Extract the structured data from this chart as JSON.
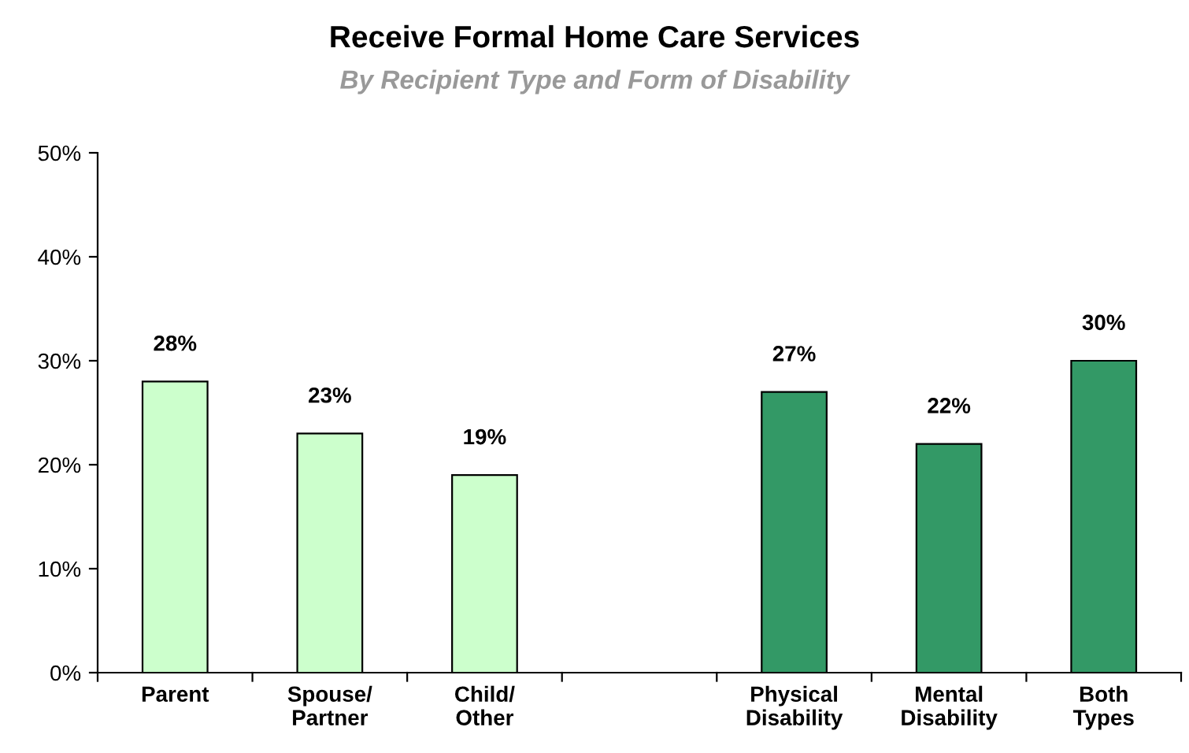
{
  "chart_data": {
    "type": "bar",
    "title": "Receive Formal Home Care Services",
    "subtitle": "By Recipient Type and Form of Disability",
    "categories": [
      "Parent",
      "Spouse/\nPartner",
      "Child/\nOther",
      null,
      "Physical\nDisability",
      "Mental\nDisability",
      "Both\nTypes"
    ],
    "values": [
      28,
      23,
      19,
      null,
      27,
      22,
      30
    ],
    "colors": [
      "#ccffcc",
      "#ccffcc",
      "#ccffcc",
      null,
      "#339966",
      "#339966",
      "#339966"
    ],
    "value_labels": [
      "28%",
      "23%",
      "19%",
      null,
      "27%",
      "22%",
      "30%"
    ],
    "ylim": [
      0,
      50
    ],
    "yticks": [
      {
        "value": 0,
        "label": "0%"
      },
      {
        "value": 10,
        "label": "10%"
      },
      {
        "value": 20,
        "label": "20%"
      },
      {
        "value": 30,
        "label": "30%"
      },
      {
        "value": 40,
        "label": "40%"
      },
      {
        "value": 50,
        "label": "50%"
      }
    ],
    "grid": false,
    "legend": false
  }
}
